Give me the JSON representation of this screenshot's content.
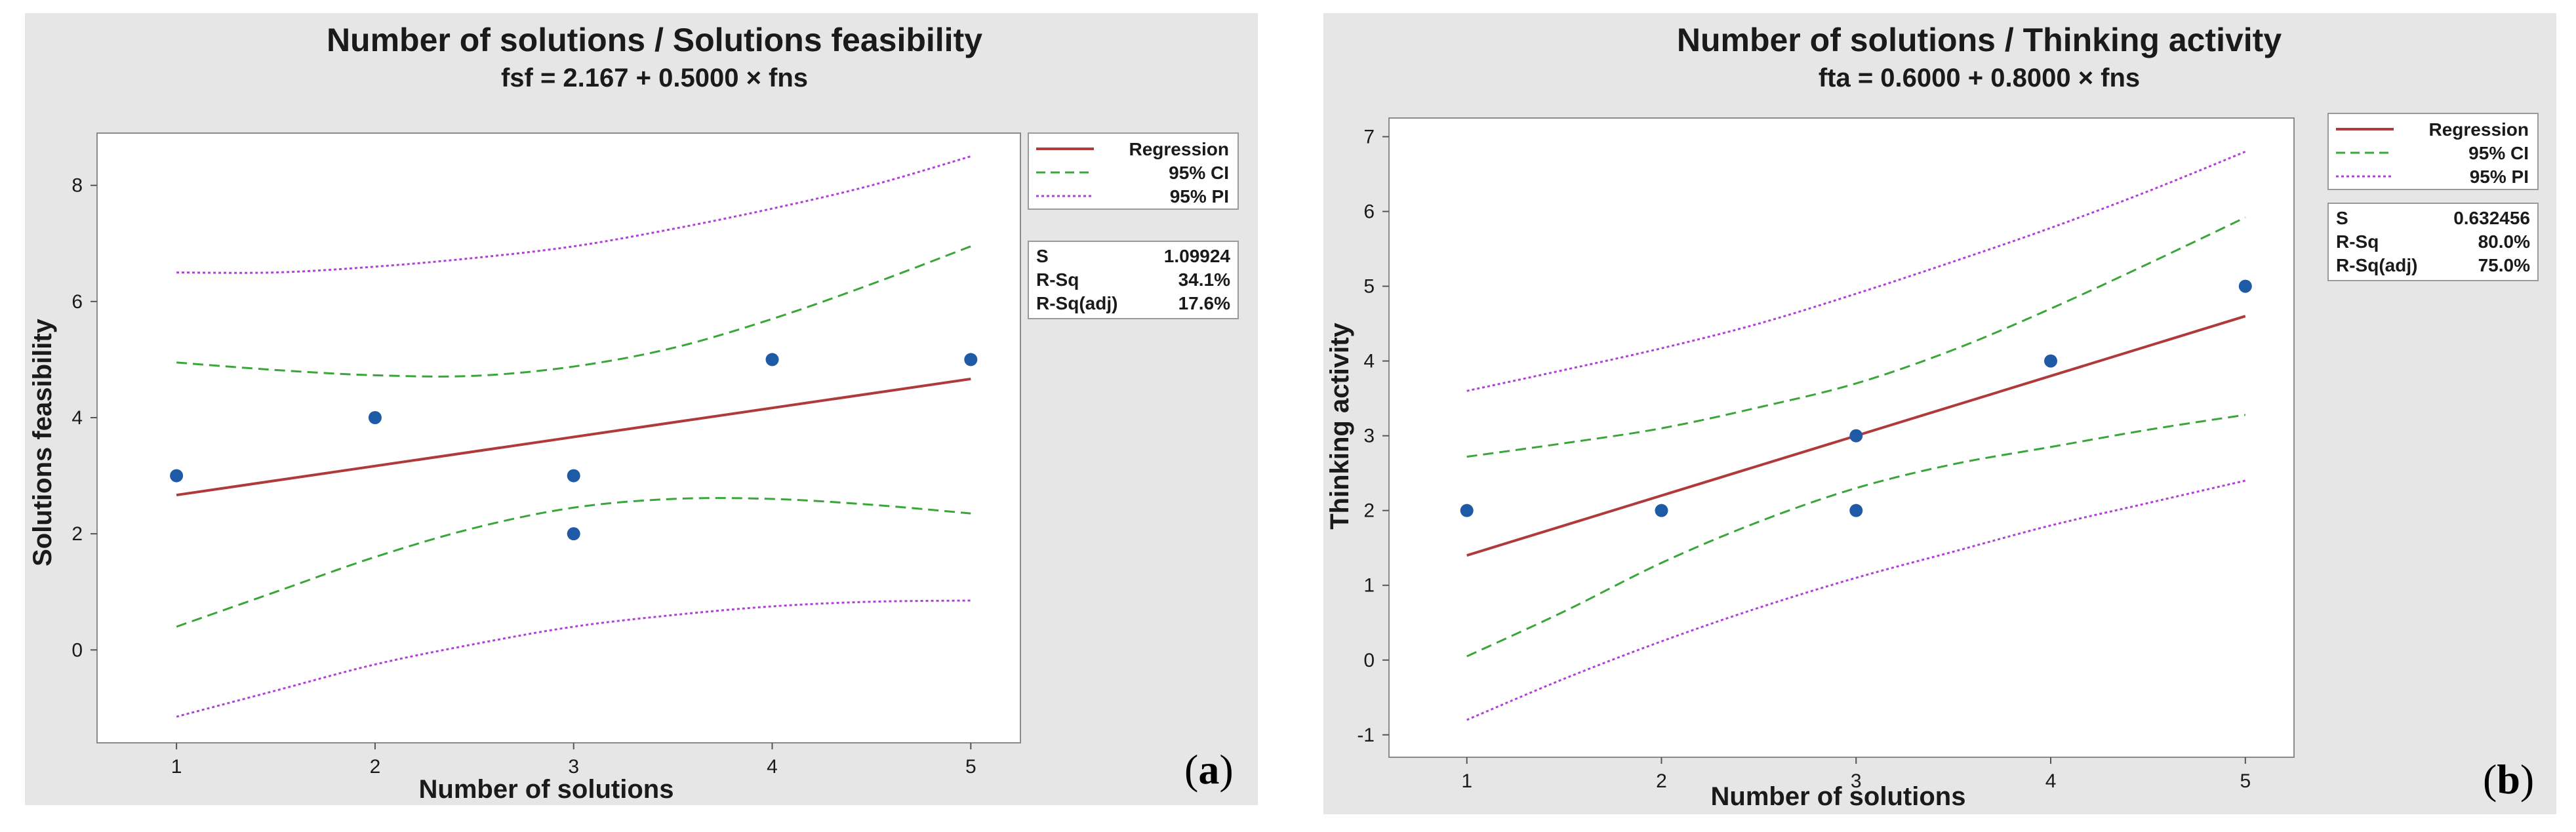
{
  "chart_data": [
    {
      "type": "scatter",
      "panel_tag": "a",
      "title": "Number of solutions / Solutions feasibility",
      "subtitle": "fsf = 2.167 + 0.5000 × fns",
      "xlabel": "Number of solutions",
      "ylabel": "Solutions feasibility",
      "xlim": [
        0.6,
        5.25
      ],
      "ylim": [
        -1.6,
        8.9
      ],
      "xticks": [
        1,
        2,
        3,
        4,
        5
      ],
      "yticks": [
        0,
        2,
        4,
        6,
        8
      ],
      "points": [
        [
          1,
          3
        ],
        [
          2,
          4
        ],
        [
          3,
          3
        ],
        [
          3,
          2
        ],
        [
          4,
          5
        ],
        [
          5,
          5
        ]
      ],
      "regression": {
        "intercept": 2.167,
        "slope": 0.5
      },
      "ci": {
        "x": [
          1,
          1.5,
          2,
          2.5,
          3,
          3.5,
          4,
          4.5,
          5
        ],
        "upper": [
          4.95,
          4.82,
          4.73,
          4.72,
          4.88,
          5.2,
          5.7,
          6.3,
          6.95
        ],
        "lower": [
          0.4,
          1.0,
          1.6,
          2.1,
          2.45,
          2.6,
          2.6,
          2.5,
          2.35
        ]
      },
      "pi": {
        "x": [
          1,
          1.5,
          2,
          2.5,
          3,
          3.5,
          4,
          4.5,
          5
        ],
        "upper": [
          6.5,
          6.5,
          6.6,
          6.75,
          6.95,
          7.25,
          7.6,
          8.0,
          8.5
        ],
        "lower": [
          -1.15,
          -0.7,
          -0.25,
          0.1,
          0.4,
          0.6,
          0.75,
          0.83,
          0.85
        ]
      },
      "legend": {
        "regression": "Regression",
        "ci": "95% CI",
        "pi": "95% PI"
      },
      "stats": [
        {
          "label": "S",
          "value": "1.09924"
        },
        {
          "label": "R-Sq",
          "value": "34.1%"
        },
        {
          "label": "R-Sq(adj)",
          "value": "17.6%"
        }
      ]
    },
    {
      "type": "scatter",
      "panel_tag": "b",
      "title": "Number of solutions / Thinking activity",
      "subtitle": "fta = 0.6000 + 0.8000 × fns",
      "xlabel": "Number of solutions",
      "ylabel": "Thinking activity",
      "xlim": [
        0.6,
        5.25
      ],
      "ylim": [
        -1.3,
        7.25
      ],
      "xticks": [
        1,
        2,
        3,
        4,
        5
      ],
      "yticks": [
        -1,
        0,
        1,
        2,
        3,
        4,
        5,
        6,
        7
      ],
      "points": [
        [
          1,
          2
        ],
        [
          2,
          2
        ],
        [
          3,
          3
        ],
        [
          3,
          2
        ],
        [
          4,
          4
        ],
        [
          5,
          5
        ]
      ],
      "regression": {
        "intercept": 0.6,
        "slope": 0.8
      },
      "ci": {
        "x": [
          1,
          1.5,
          2,
          2.5,
          3,
          3.5,
          4,
          4.5,
          5
        ],
        "upper": [
          2.72,
          2.9,
          3.1,
          3.38,
          3.7,
          4.15,
          4.7,
          5.3,
          5.92
        ],
        "lower": [
          0.05,
          0.65,
          1.3,
          1.85,
          2.3,
          2.62,
          2.85,
          3.08,
          3.28
        ]
      },
      "pi": {
        "x": [
          1,
          1.5,
          2,
          2.5,
          3,
          3.5,
          4,
          4.5,
          5
        ],
        "upper": [
          3.6,
          3.88,
          4.17,
          4.5,
          4.9,
          5.33,
          5.78,
          6.27,
          6.8
        ],
        "lower": [
          -0.8,
          -0.25,
          0.25,
          0.7,
          1.1,
          1.45,
          1.8,
          2.1,
          2.4
        ]
      },
      "legend": {
        "regression": "Regression",
        "ci": "95% CI",
        "pi": "95% PI"
      },
      "stats": [
        {
          "label": "S",
          "value": "0.632456"
        },
        {
          "label": "R-Sq",
          "value": "80.0%"
        },
        {
          "label": "R-Sq(adj)",
          "value": "75.0%"
        }
      ]
    }
  ],
  "colors": {
    "regression": "#b03a3a",
    "ci": "#3aa63a",
    "pi": "#b040d8",
    "point": "#1f5aa6"
  }
}
